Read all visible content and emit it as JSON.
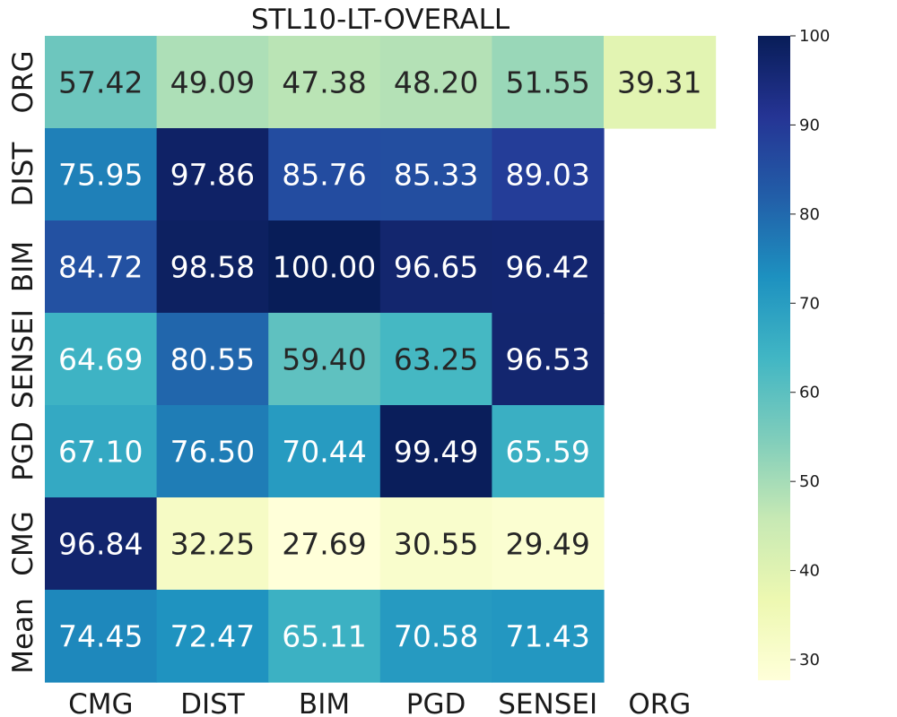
{
  "chart_data": {
    "type": "heatmap",
    "title": "STL10-LT-OVERALL",
    "x_categories": [
      "CMG",
      "DIST",
      "BIM",
      "PGD",
      "SENSEI",
      "ORG"
    ],
    "y_categories": [
      "ORG",
      "DIST",
      "BIM",
      "SENSEI",
      "PGD",
      "CMG",
      "Mean"
    ],
    "values": [
      [
        57.42,
        49.09,
        47.38,
        48.2,
        51.55,
        39.31
      ],
      [
        75.95,
        97.86,
        85.76,
        85.33,
        89.03,
        null
      ],
      [
        84.72,
        98.58,
        100.0,
        96.65,
        96.42,
        null
      ],
      [
        64.69,
        80.55,
        59.4,
        63.25,
        96.53,
        null
      ],
      [
        67.1,
        76.5,
        70.44,
        99.49,
        65.59,
        null
      ],
      [
        96.84,
        32.25,
        27.69,
        30.55,
        29.49,
        null
      ],
      [
        74.45,
        72.47,
        65.11,
        70.58,
        71.43,
        null
      ]
    ],
    "colormap": "YlGnBu",
    "vmin": 27.69,
    "vmax": 100.0,
    "colorbar_ticks": [
      30,
      40,
      50,
      60,
      70,
      80,
      90,
      100
    ],
    "legend_position": "right",
    "grid": false
  }
}
